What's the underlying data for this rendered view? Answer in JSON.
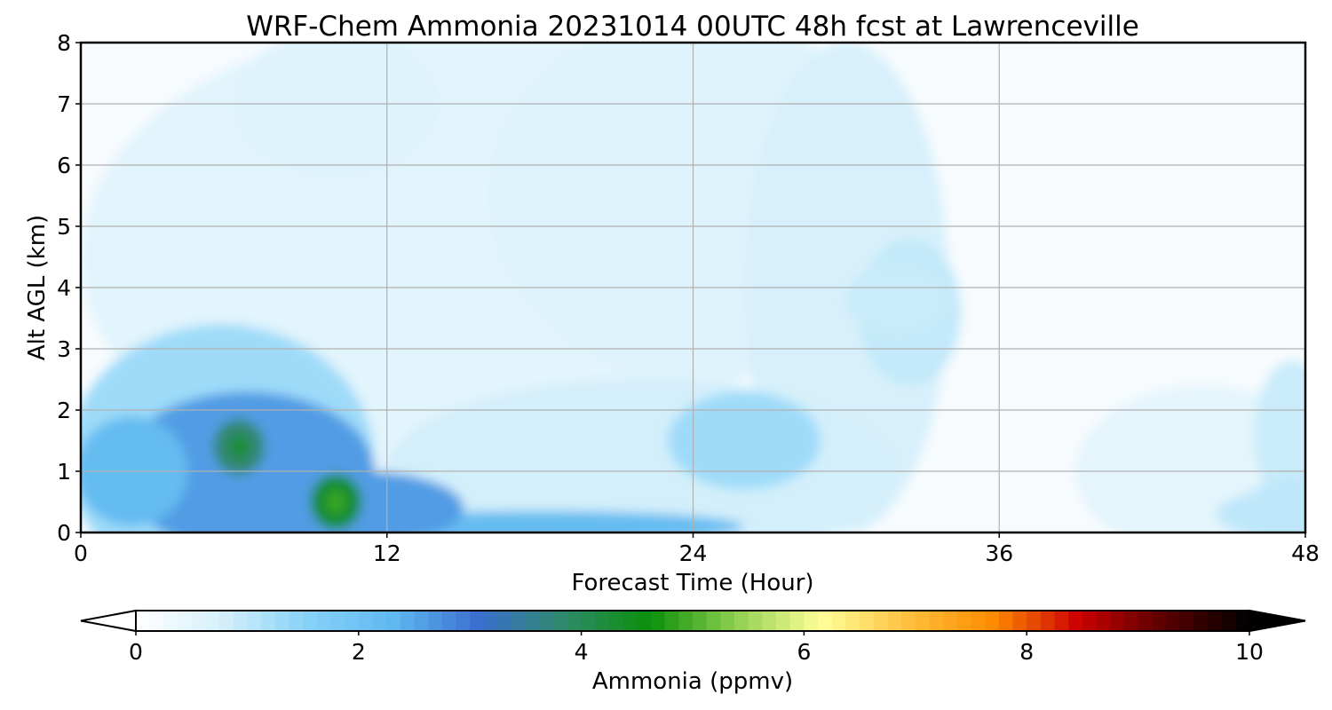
{
  "chart_data": {
    "type": "heatmap",
    "title": "WRF-Chem Ammonia  20231014 00UTC 48h fcst at Lawrenceville",
    "xlabel": "Forecast Time (Hour)",
    "ylabel": "Alt AGL (km)",
    "xlim": [
      0,
      48
    ],
    "ylim": [
      0,
      8
    ],
    "x_ticks": [
      "0",
      "12",
      "24",
      "36",
      "48"
    ],
    "y_ticks": [
      "0",
      "1",
      "2",
      "3",
      "4",
      "5",
      "6",
      "7",
      "8"
    ],
    "grid": true,
    "colorbar": {
      "label": "Ammonia  (ppmv)",
      "range": [
        0,
        10
      ],
      "extend": "both",
      "ticks": [
        "0",
        "2",
        "4",
        "6",
        "8",
        "10"
      ],
      "colors": [
        "#ffffff",
        "#d6f0fb",
        "#87d2f8",
        "#5fb8f0",
        "#3a6fd0",
        "#2f8a6a",
        "#0a8f0a",
        "#8fcf50",
        "#ffff99",
        "#ffc040",
        "#ff8c00",
        "#cc0000",
        "#5a0000",
        "#000000"
      ]
    },
    "features": [
      {
        "name": "near-surface plume",
        "x_range_h": [
          0,
          16
        ],
        "z_range_km": [
          0,
          2.6
        ],
        "value_ppmv": 2.6
      },
      {
        "name": "local max 1",
        "x_h": 6.2,
        "z_km": 1.4,
        "value_ppmv": 3.8
      },
      {
        "name": "local max 2",
        "x_h": 10.0,
        "z_km": 0.5,
        "value_ppmv": 4.3
      },
      {
        "name": "secondary max",
        "x_h": 26.0,
        "z_km": 1.5,
        "value_ppmv": 1.3
      },
      {
        "name": "upper layer band",
        "x_h": 32.0,
        "z_km": 3.8,
        "value_ppmv": 0.9
      },
      {
        "name": "late-period rise",
        "x_h": 47.5,
        "z_km": 0.3,
        "value_ppmv": 1.0
      }
    ]
  }
}
